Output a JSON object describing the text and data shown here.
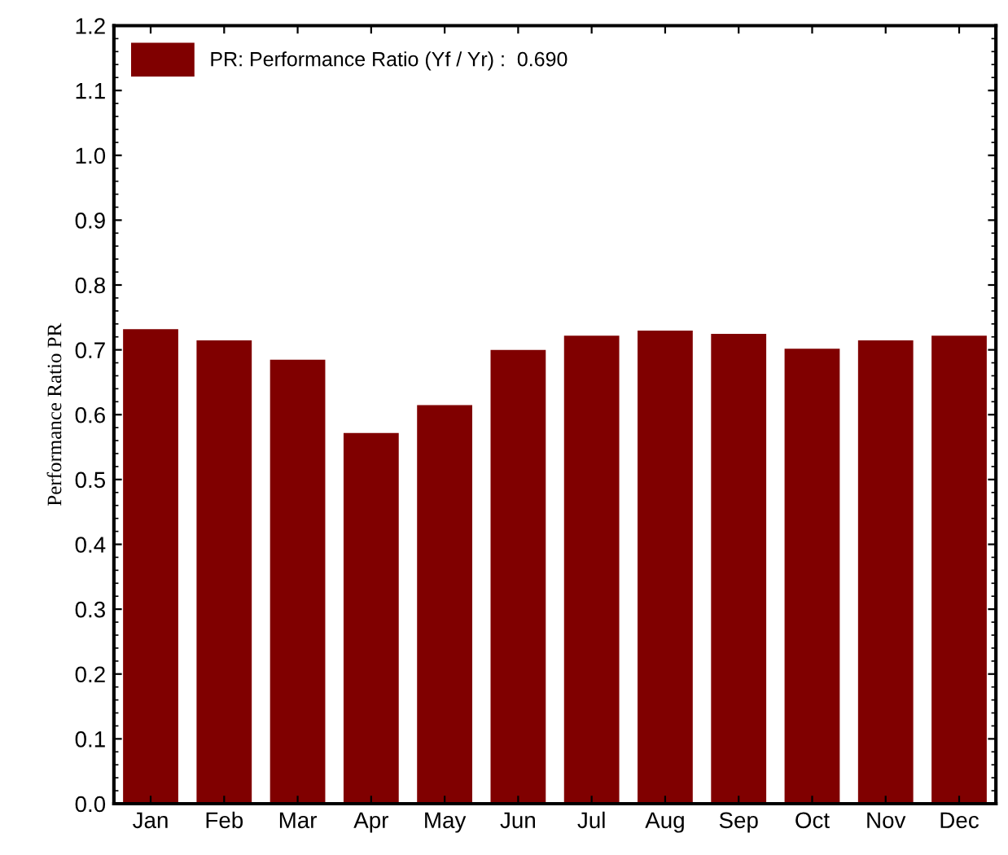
{
  "chart_data": {
    "type": "bar",
    "ylabel": "Performance Ratio PR",
    "categories": [
      "Jan",
      "Feb",
      "Mar",
      "Apr",
      "May",
      "Jun",
      "Jul",
      "Aug",
      "Sep",
      "Oct",
      "Nov",
      "Dec"
    ],
    "series": [
      {
        "name": "PR: Performance Ratio (Yf / Yr) :  0.690",
        "color": "#800000",
        "values": [
          0.73,
          0.713,
          0.683,
          0.57,
          0.613,
          0.698,
          0.72,
          0.728,
          0.723,
          0.7,
          0.713,
          0.72
        ]
      }
    ],
    "ylim": [
      0,
      1.2
    ],
    "yticks": [
      {
        "value": 0,
        "label": "0.0"
      },
      {
        "value": 0.1,
        "label": "0.1"
      },
      {
        "value": 0.2,
        "label": "0.2"
      },
      {
        "value": 0.3,
        "label": "0.3"
      },
      {
        "value": 0.4,
        "label": "0.4"
      },
      {
        "value": 0.5,
        "label": "0.5"
      },
      {
        "value": 0.6,
        "label": "0.6"
      },
      {
        "value": 0.7,
        "label": "0.7"
      },
      {
        "value": 0.8,
        "label": "0.8"
      },
      {
        "value": 0.9,
        "label": "0.9"
      },
      {
        "value": 1.0,
        "label": "1.0"
      },
      {
        "value": 1.1,
        "label": "1.1"
      },
      {
        "value": 1.2,
        "label": "1.2"
      }
    ],
    "legend": "top left",
    "grid": false
  }
}
